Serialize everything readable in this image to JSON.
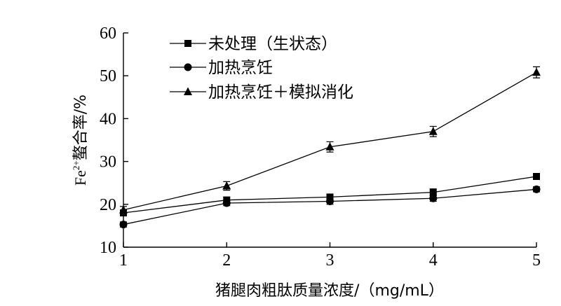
{
  "chart_data": {
    "type": "line",
    "xlabel": "猪腿肉粗肽质量浓度/（mg/mL）",
    "ylabel_main": "Fe",
    "ylabel_sup": "2+",
    "ylabel_rest": "螯合率/%",
    "x": [
      1,
      2,
      3,
      4,
      5
    ],
    "xlim": [
      1,
      5
    ],
    "ylim": [
      10,
      60
    ],
    "yticks": [
      10,
      20,
      30,
      40,
      50,
      60
    ],
    "xticks": [
      1,
      2,
      3,
      4,
      5
    ],
    "grid": false,
    "legend_position": "top-left",
    "series": [
      {
        "name": "未处理（生状态）",
        "marker": "square",
        "values": [
          18.0,
          21.0,
          21.7,
          22.8,
          26.5
        ],
        "errors": [
          0.6,
          0.7,
          0.7,
          0.8,
          0.7
        ]
      },
      {
        "name": "加热烹饪",
        "marker": "circle",
        "values": [
          15.3,
          20.3,
          20.7,
          21.4,
          23.5
        ],
        "errors": [
          0.6,
          0.6,
          0.7,
          0.7,
          0.6
        ]
      },
      {
        "name": "加热烹饪＋模拟消化",
        "marker": "triangle",
        "values": [
          18.7,
          24.3,
          33.4,
          37.0,
          50.8
        ],
        "errors": [
          0.8,
          1.0,
          1.2,
          1.2,
          1.3
        ]
      }
    ]
  }
}
